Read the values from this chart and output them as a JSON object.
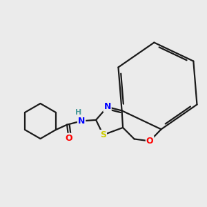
{
  "background_color": "#ebebeb",
  "bond_color": "#1a1a1a",
  "bond_width": 1.6,
  "atom_colors": {
    "N": "#0000ff",
    "O": "#ff0000",
    "S": "#cccc00",
    "H": "#4a9a9a",
    "C": "#000000"
  },
  "font_size": 8.5,
  "fig_width": 3.0,
  "fig_height": 3.0,
  "dpi": 100
}
